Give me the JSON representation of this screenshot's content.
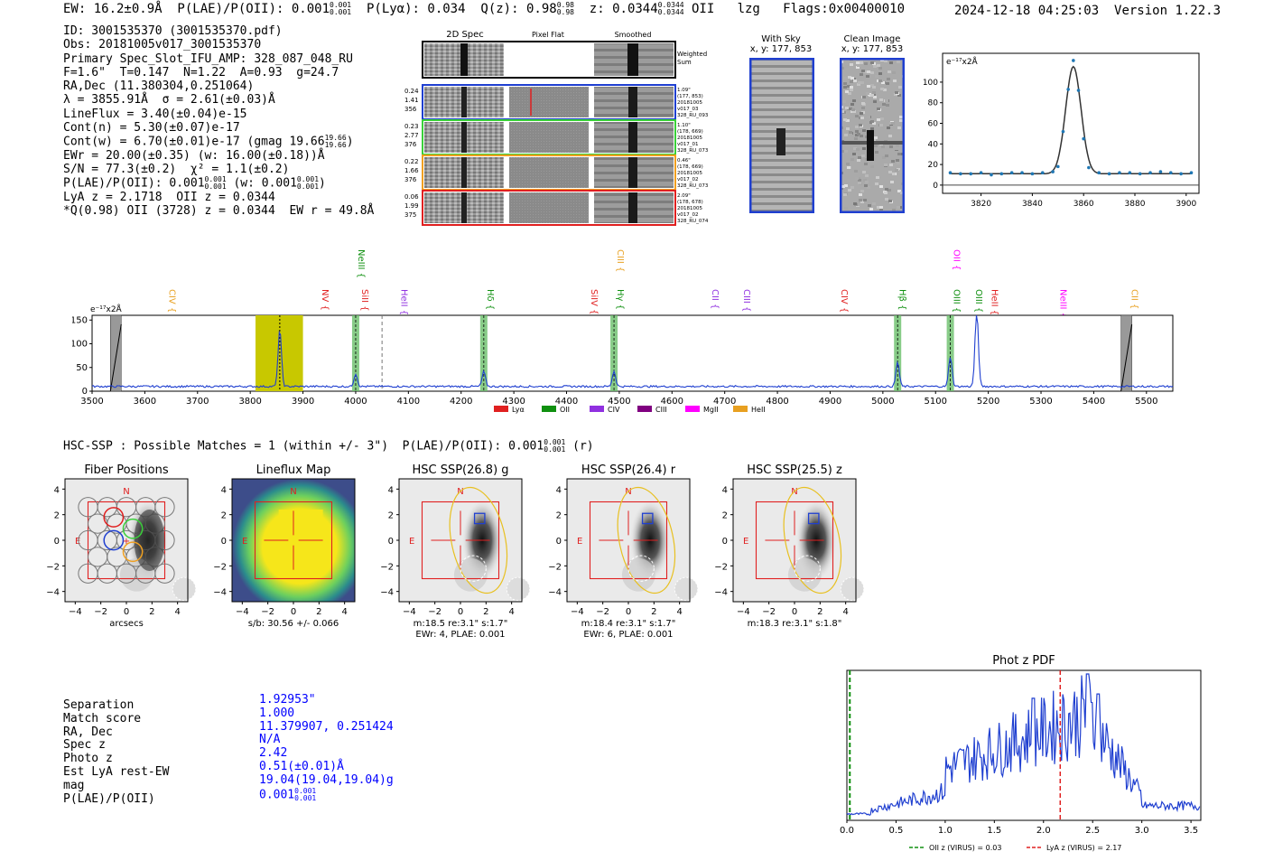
{
  "header": {
    "left_text": "EW: 16.2±0.9Å  P(LAE)/P(OII): 0.001",
    "left_frac_top": "0.001",
    "left_frac_bot": "0.001",
    "left_text2": "  P(Lyα): 0.034  Q(z): 0.98",
    "q_frac_top": "0.98",
    "q_frac_bot": "0.98",
    "left_text3": "  z: 0.0344",
    "z_frac_top": "0.0344",
    "z_frac_bot": "0.0344",
    "left_text4": " OII   lzg   Flags:0x00400010",
    "timestamp": "2024-12-18 04:25:03",
    "version": "Version 1.22.3"
  },
  "info": {
    "lines": [
      "ID: 3001535370 (3001535370.pdf)",
      "Obs: 20181005v017_3001535370",
      "Primary Spec_Slot_IFU_AMP: 328_087_048_RU",
      "F=1.6\"  T=0.147  N=1.22  A=0.93  g=24.7",
      "RA,Dec (11.380304,0.251064)",
      "λ = 3855.91Å  σ = 2.61(±0.03)Å",
      "LineFlux = 3.40(±0.04)e-15",
      "Cont(n) = 5.30(±0.07)e-17"
    ],
    "cont_w": "Cont(w) = 6.70(±0.01)e-17 (gmag 19.66",
    "cont_w_top": "19.66",
    "cont_w_bot": "19.66",
    "ewr": "EWr = 20.00(±0.35) (w: 16.00(±0.18))Å",
    "sn": "S/N = 77.3(±0.2)  χ² = 1.1(±0.2)",
    "plae": "P(LAE)/P(OII): 0.001",
    "plae_top": "0.001",
    "plae_bot": "0.001",
    "plae_w": " (w: 0.001",
    "plae_w_top": "0.001",
    "plae_w_bot": "0.001",
    "lya_line": "LyA z = 2.1718  OII z = 0.0344",
    "q_line": "*Q(0.98) OII (3728) z = 0.0344  EW r = 49.8Å"
  },
  "cutouts": {
    "col_2d": "2D Spec",
    "col_flat": "Pixel Flat",
    "col_smooth": "Smoothed",
    "weighted": "Weighted\nSum",
    "rows": [
      {
        "left": "0.24\n1.41\n356",
        "right": "1.09\"\n(177, 853)\n20181005\nv017_03\n328_RU_093",
        "color": "#1f3fd0"
      },
      {
        "left": "0.23\n2.77\n376",
        "right": "1.10\"\n(178, 669)\n20181005\nv017_01\n328_RU_073",
        "color": "#39d039"
      },
      {
        "left": "0.22\n1.66\n376",
        "right": "0.46\"\n(178, 669)\n20181005\nv017_02\n328_RU_073",
        "color": "#f0a020"
      },
      {
        "left": "0.06\n1.99\n375",
        "right": "2.09\"\n(178, 678)\n20181005\nv017_02\n328_RU_074",
        "color": "#e02020"
      }
    ],
    "with_sky": "With Sky",
    "with_sky_xy": "x, y: 177, 853",
    "clean": "Clean Image",
    "clean_xy": "x, y: 177, 853"
  },
  "zoom_chart": {
    "unit": "e⁻¹⁷x2Å",
    "xticks": [
      "3820",
      "3840",
      "3860",
      "3880",
      "3900"
    ],
    "yticks": [
      "0",
      "20",
      "40",
      "60",
      "80",
      "100"
    ]
  },
  "chart_data": [
    {
      "type": "line",
      "title": "zoom line fit",
      "xlabel": "",
      "ylabel": "e-17 x2Å",
      "xlim": [
        3805,
        3905
      ],
      "ylim": [
        -8,
        128
      ],
      "fit": {
        "center": 3856,
        "sigma": 2.61,
        "amp": 104,
        "cont": 11
      },
      "x": [
        3808,
        3812,
        3816,
        3820,
        3824,
        3828,
        3832,
        3836,
        3840,
        3844,
        3848,
        3850,
        3852,
        3854,
        3856,
        3858,
        3860,
        3862,
        3866,
        3870,
        3874,
        3878,
        3882,
        3886,
        3890,
        3894,
        3898,
        3902
      ],
      "y": [
        12,
        11,
        11,
        12,
        10,
        11,
        12,
        12,
        11,
        12,
        13,
        18,
        52,
        93,
        121,
        92,
        45,
        17,
        12,
        11,
        12,
        12,
        11,
        12,
        13,
        12,
        11,
        12
      ]
    },
    {
      "type": "line",
      "title": "full spectrum",
      "unit": "e⁻¹⁷x2Å",
      "xlim": [
        3500,
        5550
      ],
      "ylim": [
        0,
        160
      ],
      "xticks": [
        "3500",
        "3600",
        "3700",
        "3800",
        "3900",
        "4000",
        "4100",
        "4200",
        "4300",
        "4400",
        "4500",
        "4600",
        "4700",
        "4800",
        "4900",
        "5000",
        "5100",
        "5200",
        "5300",
        "5400",
        "5500"
      ],
      "yticks": [
        "0",
        "50",
        "100",
        "150"
      ],
      "peaks": [
        {
          "x": 3856,
          "h": 120
        },
        {
          "x": 4000,
          "h": 27
        },
        {
          "x": 4243,
          "h": 31
        },
        {
          "x": 4490,
          "h": 32
        },
        {
          "x": 5028,
          "h": 52
        },
        {
          "x": 5128,
          "h": 63
        },
        {
          "x": 5178,
          "h": 160
        }
      ],
      "line_labels": [
        {
          "x": 3640,
          "label": "CIV",
          "color": "#e8a020",
          "row": 1
        },
        {
          "x": 3930,
          "label": "NV",
          "color": "#e02020",
          "row": 1
        },
        {
          "x": 3998,
          "label": "NeIII",
          "color": "#109010",
          "row": 0
        },
        {
          "x": 4005,
          "label": "SiII",
          "color": "#e02020",
          "row": 1
        },
        {
          "x": 4080,
          "label": "HeII",
          "color": "#9030e0",
          "row": 1
        },
        {
          "x": 4243,
          "label": "Hδ",
          "color": "#109010",
          "row": 1
        },
        {
          "x": 4440,
          "label": "SiIV",
          "color": "#e02020",
          "row": 1
        },
        {
          "x": 4490,
          "label": "CIII",
          "color": "#e8a020",
          "row": 0
        },
        {
          "x": 4490,
          "label": "Hγ",
          "color": "#109010",
          "row": 1
        },
        {
          "x": 4670,
          "label": "CII",
          "color": "#9030e0",
          "row": 1
        },
        {
          "x": 4730,
          "label": "CIII",
          "color": "#9030e0",
          "row": 1
        },
        {
          "x": 4915,
          "label": "CIV",
          "color": "#e02020",
          "row": 1
        },
        {
          "x": 5025,
          "label": "Hβ",
          "color": "#109010",
          "row": 1
        },
        {
          "x": 5128,
          "label": "OII",
          "color": "#ff00ff",
          "row": 0
        },
        {
          "x": 5128,
          "label": "OIII",
          "color": "#109010",
          "row": 1
        },
        {
          "x": 5170,
          "label": "OIII",
          "color": "#109010",
          "row": 1
        },
        {
          "x": 5200,
          "label": "HeII",
          "color": "#e02020",
          "row": 1
        },
        {
          "x": 5330,
          "label": "NeIII",
          "color": "#ff00ff",
          "row": 1
        },
        {
          "x": 5465,
          "label": "CII",
          "color": "#e8a020",
          "row": 1
        }
      ],
      "green_bands": [
        4000,
        4243,
        4490,
        5028,
        5128
      ],
      "gray_bands": [
        3545,
        5462
      ],
      "yellow_band": [
        3810,
        3900
      ],
      "dashed_lines": [
        4050
      ],
      "legend": [
        {
          "label": "Lyα",
          "color": "#e02020"
        },
        {
          "label": "OII",
          "color": "#109010"
        },
        {
          "label": "CIV",
          "color": "#9030e0"
        },
        {
          "label": "CIII",
          "color": "#800080"
        },
        {
          "label": "MgII",
          "color": "#ff00ff"
        },
        {
          "label": "HeII",
          "color": "#e8a020"
        }
      ]
    },
    {
      "type": "line",
      "title": "Phot z PDF",
      "xlim": [
        0,
        3.6
      ],
      "xticks": [
        "0.0",
        "0.5",
        "1.0",
        "1.5",
        "2.0",
        "2.5",
        "3.0",
        "3.5"
      ],
      "oii_z": 0.03,
      "lya_z": 2.17,
      "legend": [
        {
          "label": "OII z (VIRUS) = 0.03",
          "color": "#109010"
        },
        {
          "label": "LyA z (VIRUS) = 2.17",
          "color": "#e02020"
        }
      ]
    }
  ],
  "hsc": {
    "line": "HSC-SSP : Possible Matches = 1 (within +/- 3\")  P(LAE)/P(OII): 0.001",
    "line_top": "0.001",
    "line_bot": "0.001",
    "line_tail": " (r)",
    "panels": [
      {
        "title": "Fiber Positions",
        "caption1": "arcsecs",
        "caption2": ""
      },
      {
        "title": "Lineflux Map",
        "caption1": "s/b: 30.56 +/- 0.066",
        "caption2": ""
      },
      {
        "title": "HSC SSP(26.8) g",
        "caption1": "m:18.5  re:3.1\"  s:1.7\"",
        "caption2": "EWr: 4, PLAE: 0.001"
      },
      {
        "title": "HSC SSP(26.4) r",
        "caption1": "m:18.4  re:3.1\"  s:1.7\"",
        "caption2": "EWr: 6, PLAE: 0.001"
      },
      {
        "title": "HSC SSP(25.5) z",
        "caption1": "m:18.3  re:3.1\"  s:1.8\"",
        "caption2": ""
      }
    ],
    "ticks": [
      "4",
      "2",
      "0",
      "−2",
      "−4"
    ],
    "xticks": [
      "−4",
      "−2",
      "0",
      "2",
      "4"
    ],
    "n_label": "N",
    "e_label": "E"
  },
  "separation": {
    "labels": [
      "Separation",
      "Match score",
      "RA, Dec",
      "Spec z",
      "Photo z",
      "Est LyA rest-EW",
      "mag",
      "P(LAE)/P(OII)"
    ],
    "values": [
      "1.92953\"",
      "1.000",
      "11.379907, 0.251424",
      "N/A",
      "2.42",
      "0.51(±0.01)Å",
      "19.04(19.04,19.04)g",
      "0.001"
    ],
    "plae_top": "0.001",
    "plae_bot": "0.001"
  }
}
